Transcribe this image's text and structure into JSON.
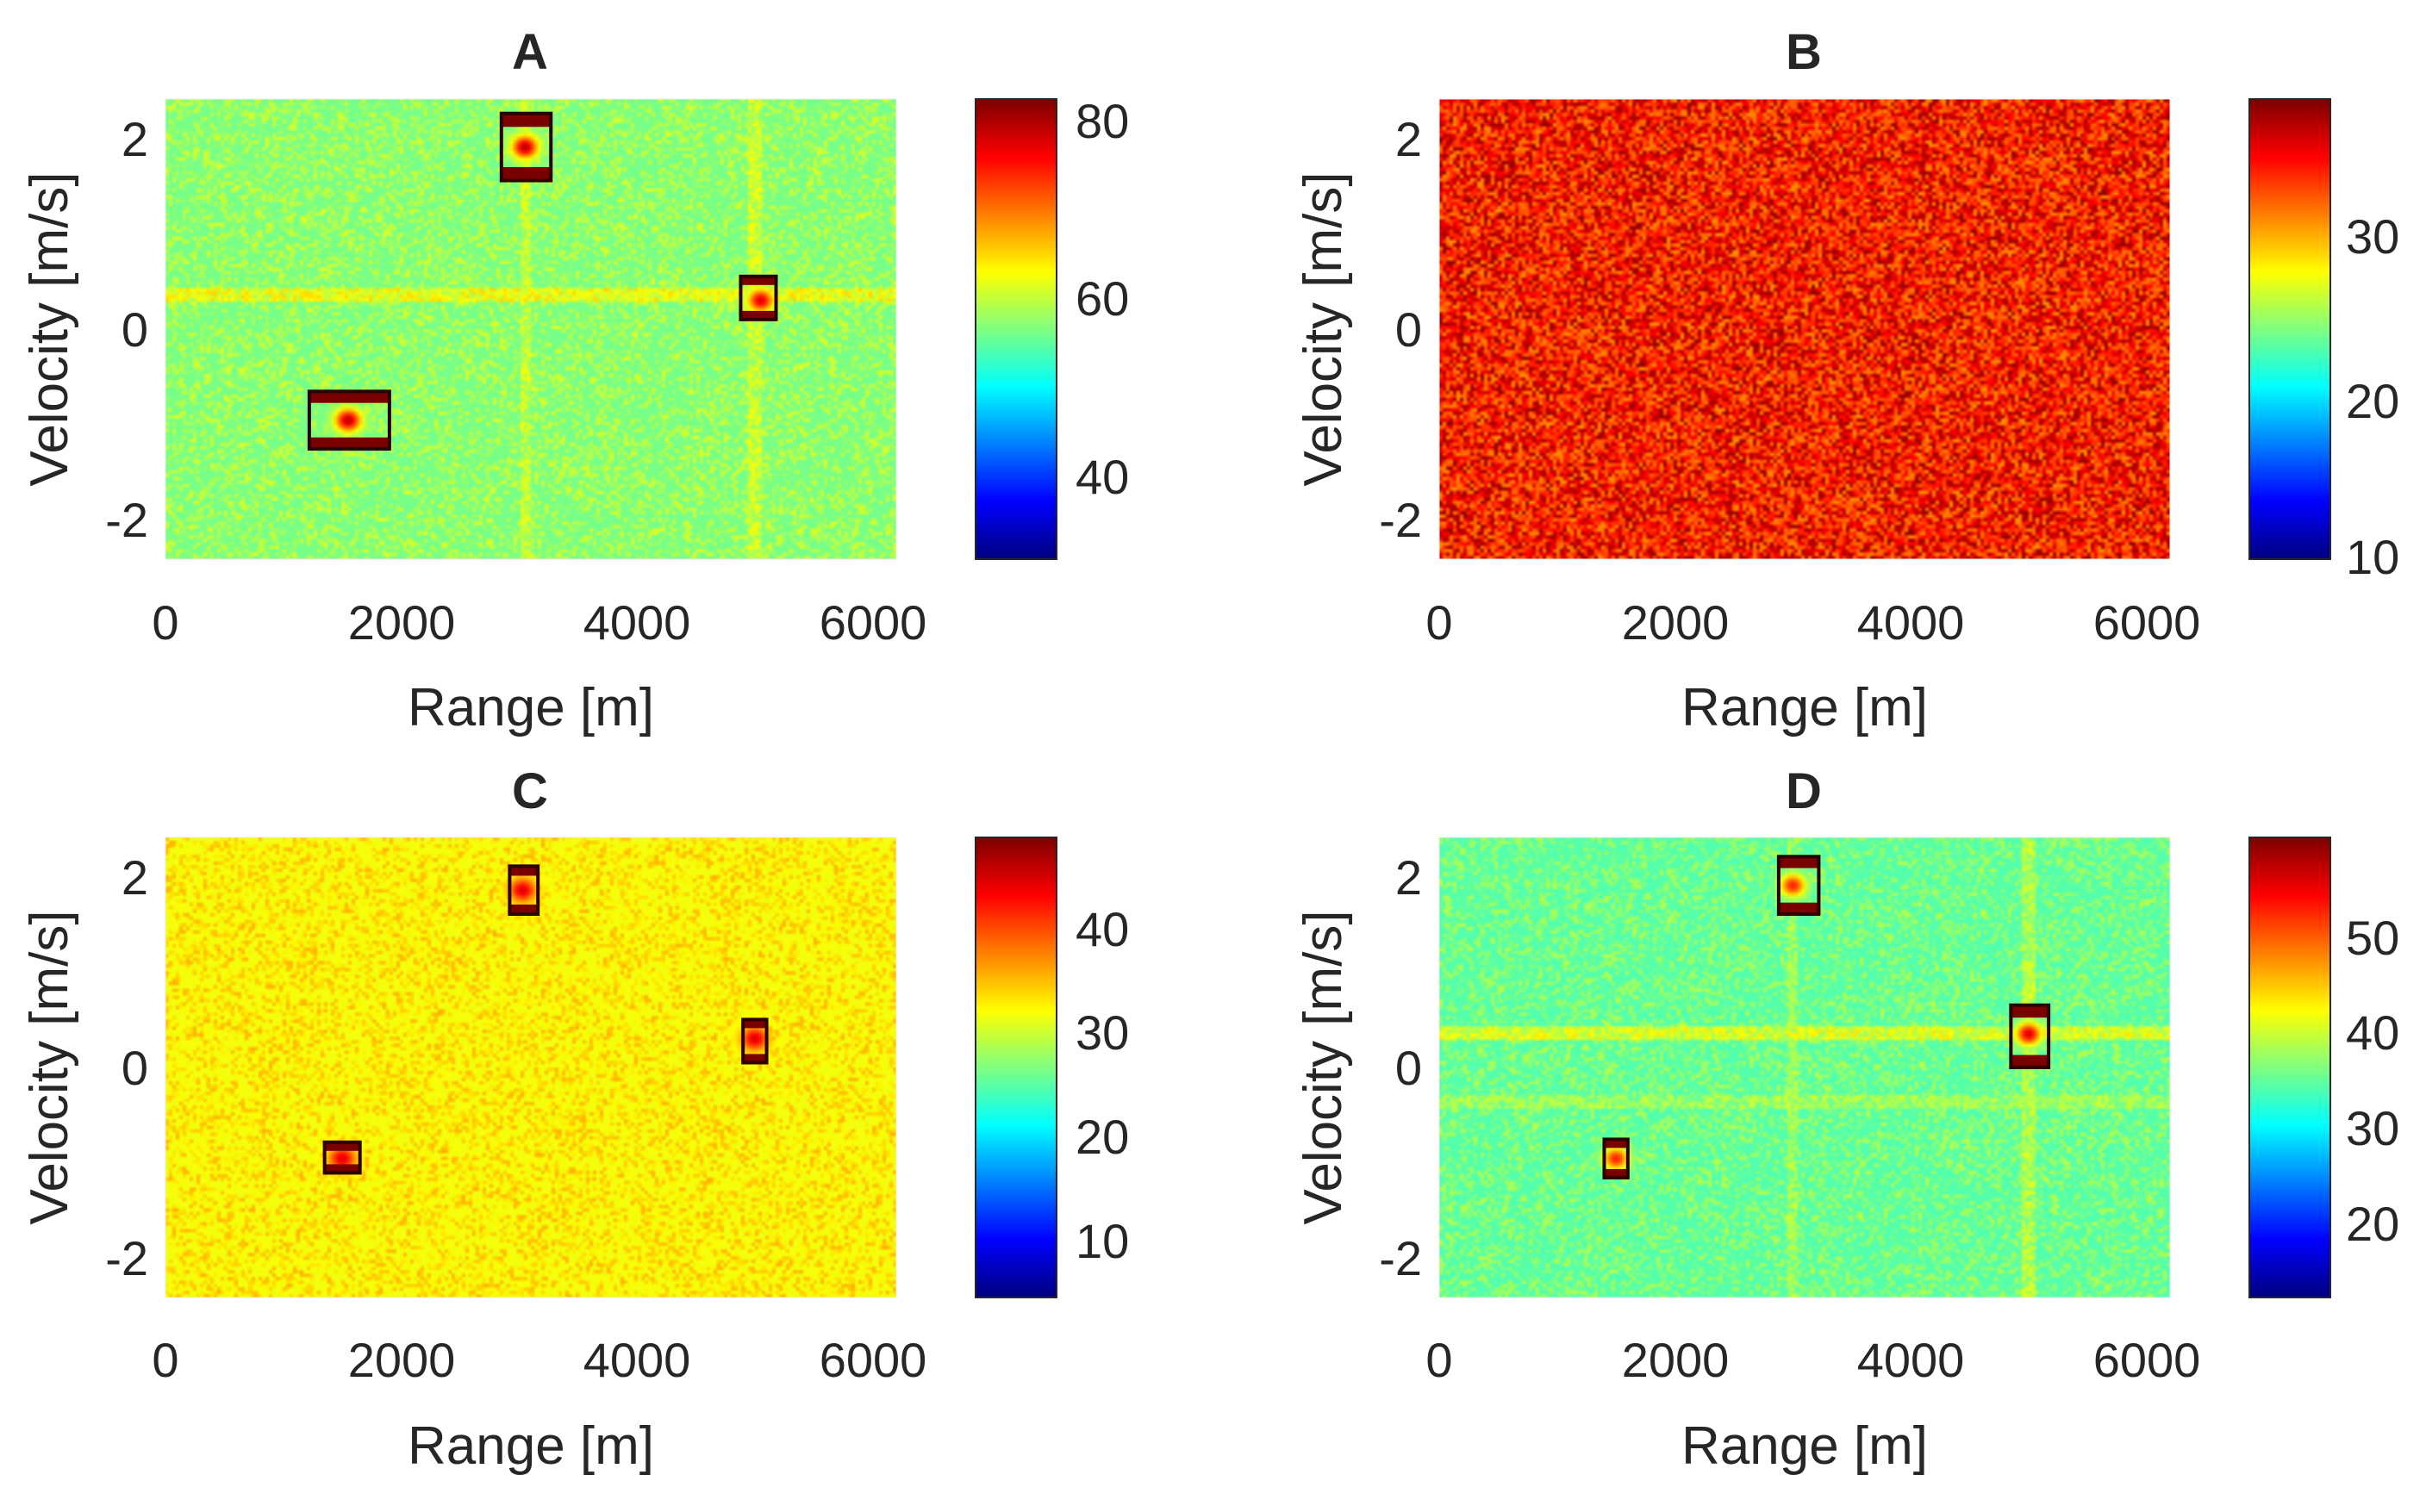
{
  "chart_data": [
    {
      "type": "heatmap",
      "title": "A",
      "xlabel": "Range [m]",
      "ylabel": "Velocity [m/s]",
      "xlim": [
        0,
        6200
      ],
      "ylim": [
        -2.4,
        2.4
      ],
      "xticks": [
        0,
        2000,
        4000,
        6000
      ],
      "yticks": [
        -2,
        0,
        2
      ],
      "colorbar": {
        "min": 30,
        "max": 83,
        "ticks": [
          40,
          60,
          80
        ]
      },
      "background_level": 56,
      "noise_amplitude": 3.5,
      "stripes": [
        {
          "axis": "velocity",
          "at": 0.35,
          "level": 62
        },
        {
          "axis": "range",
          "at": 3050,
          "level": 60
        },
        {
          "axis": "range",
          "at": 5000,
          "level": 60
        }
      ],
      "targets": [
        {
          "range": 3050,
          "velocity": 1.9,
          "peak": 80
        },
        {
          "range": 5050,
          "velocity": 0.3,
          "peak": 78
        },
        {
          "range": 1550,
          "velocity": -0.95,
          "peak": 80
        }
      ],
      "boxes": [
        {
          "range": [
            2850,
            3270
          ],
          "velocity": [
            1.55,
            2.25
          ]
        },
        {
          "range": [
            4880,
            5180
          ],
          "velocity": [
            0.1,
            0.55
          ]
        },
        {
          "range": [
            1220,
            1900
          ],
          "velocity": [
            -1.25,
            -0.65
          ]
        }
      ]
    },
    {
      "type": "heatmap",
      "title": "B",
      "xlabel": "Range [m]",
      "ylabel": "Velocity [m/s]",
      "xlim": [
        0,
        6200
      ],
      "ylim": [
        -2.4,
        2.4
      ],
      "xticks": [
        0,
        2000,
        4000,
        6000
      ],
      "yticks": [
        -2,
        0,
        2
      ],
      "colorbar": {
        "min": 10,
        "max": 38,
        "ticks": [
          10,
          20,
          30
        ]
      },
      "background_level": 34,
      "noise_amplitude": 2.2,
      "stripes": [],
      "targets": [],
      "boxes": []
    },
    {
      "type": "heatmap",
      "title": "C",
      "xlabel": "Range [m]",
      "ylabel": "Velocity [m/s]",
      "xlim": [
        0,
        6200
      ],
      "ylim": [
        -2.4,
        2.4
      ],
      "xticks": [
        0,
        2000,
        4000,
        6000
      ],
      "yticks": [
        -2,
        0,
        2
      ],
      "colorbar": {
        "min": 4,
        "max": 48,
        "ticks": [
          10,
          20,
          30,
          40
        ]
      },
      "background_level": 31,
      "noise_amplitude": 2.5,
      "stripes": [],
      "targets": [
        {
          "range": 3030,
          "velocity": 1.85,
          "peak": 44
        },
        {
          "range": 5000,
          "velocity": 0.3,
          "peak": 44
        },
        {
          "range": 1500,
          "velocity": -0.95,
          "peak": 44
        }
      ],
      "boxes": [
        {
          "range": [
            2920,
            3160
          ],
          "velocity": [
            1.6,
            2.1
          ]
        },
        {
          "range": [
            4900,
            5100
          ],
          "velocity": [
            0.05,
            0.5
          ]
        },
        {
          "range": [
            1350,
            1650
          ],
          "velocity": [
            -1.1,
            -0.78
          ]
        }
      ]
    },
    {
      "type": "heatmap",
      "title": "D",
      "xlabel": "Range [m]",
      "ylabel": "Velocity [m/s]",
      "xlim": [
        0,
        6200
      ],
      "ylim": [
        -2.4,
        2.4
      ],
      "xticks": [
        0,
        2000,
        4000,
        6000
      ],
      "yticks": [
        -2,
        0,
        2
      ],
      "colorbar": {
        "min": 13,
        "max": 59,
        "ticks": [
          20,
          30,
          40,
          50
        ]
      },
      "background_level": 34,
      "noise_amplitude": 3,
      "stripes": [
        {
          "axis": "velocity",
          "at": 0.35,
          "level": 40
        },
        {
          "axis": "velocity",
          "at": -0.35,
          "level": 37
        },
        {
          "axis": "range",
          "at": 3000,
          "level": 37
        },
        {
          "axis": "range",
          "at": 5000,
          "level": 38
        }
      ],
      "targets": [
        {
          "range": 3000,
          "velocity": 1.9,
          "peak": 52
        },
        {
          "range": 5000,
          "velocity": 0.35,
          "peak": 55
        },
        {
          "range": 1500,
          "velocity": -0.95,
          "peak": 52
        }
      ],
      "boxes": [
        {
          "range": [
            2880,
            3220
          ],
          "velocity": [
            1.6,
            2.2
          ]
        },
        {
          "range": [
            4850,
            5170
          ],
          "velocity": [
            0.0,
            0.65
          ]
        },
        {
          "range": [
            1400,
            1600
          ],
          "velocity": [
            -1.15,
            -0.75
          ]
        }
      ]
    }
  ]
}
